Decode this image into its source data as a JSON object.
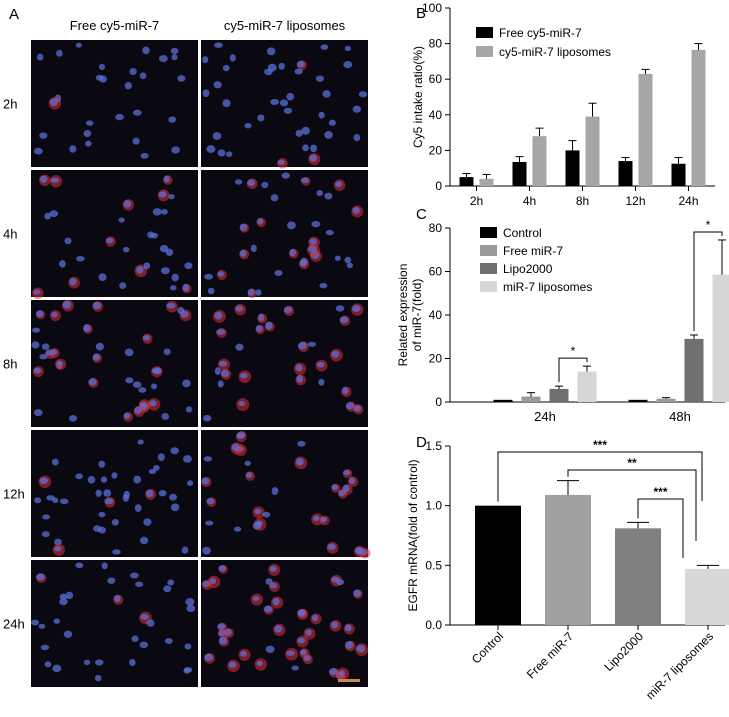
{
  "panel_a": {
    "label": "A",
    "columns": [
      "Free cy5-miR-7",
      "cy5-miR-7 liposomes"
    ],
    "rows": [
      "2h",
      "4h",
      "8h",
      "12h",
      "24h"
    ],
    "colors": {
      "background": "#0a0810",
      "nucleus": "#5a6fd8",
      "cy5": "#e0303a",
      "scalebar": "#c98a50"
    }
  },
  "chart_data": [
    {
      "panel": "B",
      "type": "bar",
      "categories": [
        "2h",
        "4h",
        "8h",
        "12h",
        "24h"
      ],
      "series": [
        {
          "name": "Free cy5-miR-7",
          "values": [
            5,
            13.5,
            20,
            14,
            12.5
          ],
          "errors": [
            2,
            3,
            5.5,
            2,
            3.5
          ],
          "color": "#000000"
        },
        {
          "name": "cy5-miR-7 liposomes",
          "values": [
            4,
            28,
            39,
            63,
            76.5
          ],
          "errors": [
            2.5,
            4.5,
            7.5,
            2.5,
            3.5
          ],
          "color": "#a6a6a6"
        }
      ],
      "ylabel": "Cy5 intake ratio(%)",
      "ylim": [
        0,
        100
      ],
      "yticks": [
        0,
        20,
        40,
        60,
        80,
        100
      ],
      "legend": "top-left"
    },
    {
      "panel": "C",
      "type": "bar",
      "categories": [
        "24h",
        "48h"
      ],
      "series": [
        {
          "name": "Control",
          "values": [
            1,
            1
          ],
          "errors": [
            0,
            0
          ],
          "color": "#000000"
        },
        {
          "name": "Free miR-7",
          "values": [
            2.5,
            1.5
          ],
          "errors": [
            1.8,
            0.5
          ],
          "color": "#9a9a9a"
        },
        {
          "name": "Lipo2000",
          "values": [
            6,
            29
          ],
          "errors": [
            1.3,
            1.8
          ],
          "color": "#707070"
        },
        {
          "name": "miR-7 liposomes",
          "values": [
            14,
            58.5
          ],
          "errors": [
            2.5,
            16
          ],
          "color": "#d6d6d6"
        }
      ],
      "ylabel": "Related expression\nof miR-7(fold)",
      "ylim": [
        0,
        80
      ],
      "yticks": [
        0,
        20,
        40,
        60,
        80
      ],
      "legend": "top-left",
      "annotations": [
        {
          "category": "24h",
          "from_series": 2,
          "to_series": 3,
          "text": "*"
        },
        {
          "category": "48h",
          "from_series": 2,
          "to_series": 3,
          "text": "*"
        }
      ]
    },
    {
      "panel": "D",
      "type": "bar",
      "categories": [
        "Control",
        "Free miR-7",
        "Lipo2000",
        "miR-7 liposomes"
      ],
      "values": [
        1.0,
        1.09,
        0.81,
        0.47
      ],
      "errors": [
        0.0,
        0.12,
        0.05,
        0.03
      ],
      "colors": [
        "#000000",
        "#a0a0a0",
        "#808080",
        "#d8d8d8"
      ],
      "ylabel": "EGFR mRNA(fold of control)",
      "ylim": [
        0,
        1.5
      ],
      "yticks": [
        0.0,
        0.5,
        1.0,
        1.5
      ],
      "annotations": [
        {
          "from": 0,
          "to": 3,
          "text": "***"
        },
        {
          "from": 1,
          "to": 3,
          "text": "**"
        },
        {
          "from": 2,
          "to": 3,
          "text": "***"
        }
      ]
    }
  ]
}
